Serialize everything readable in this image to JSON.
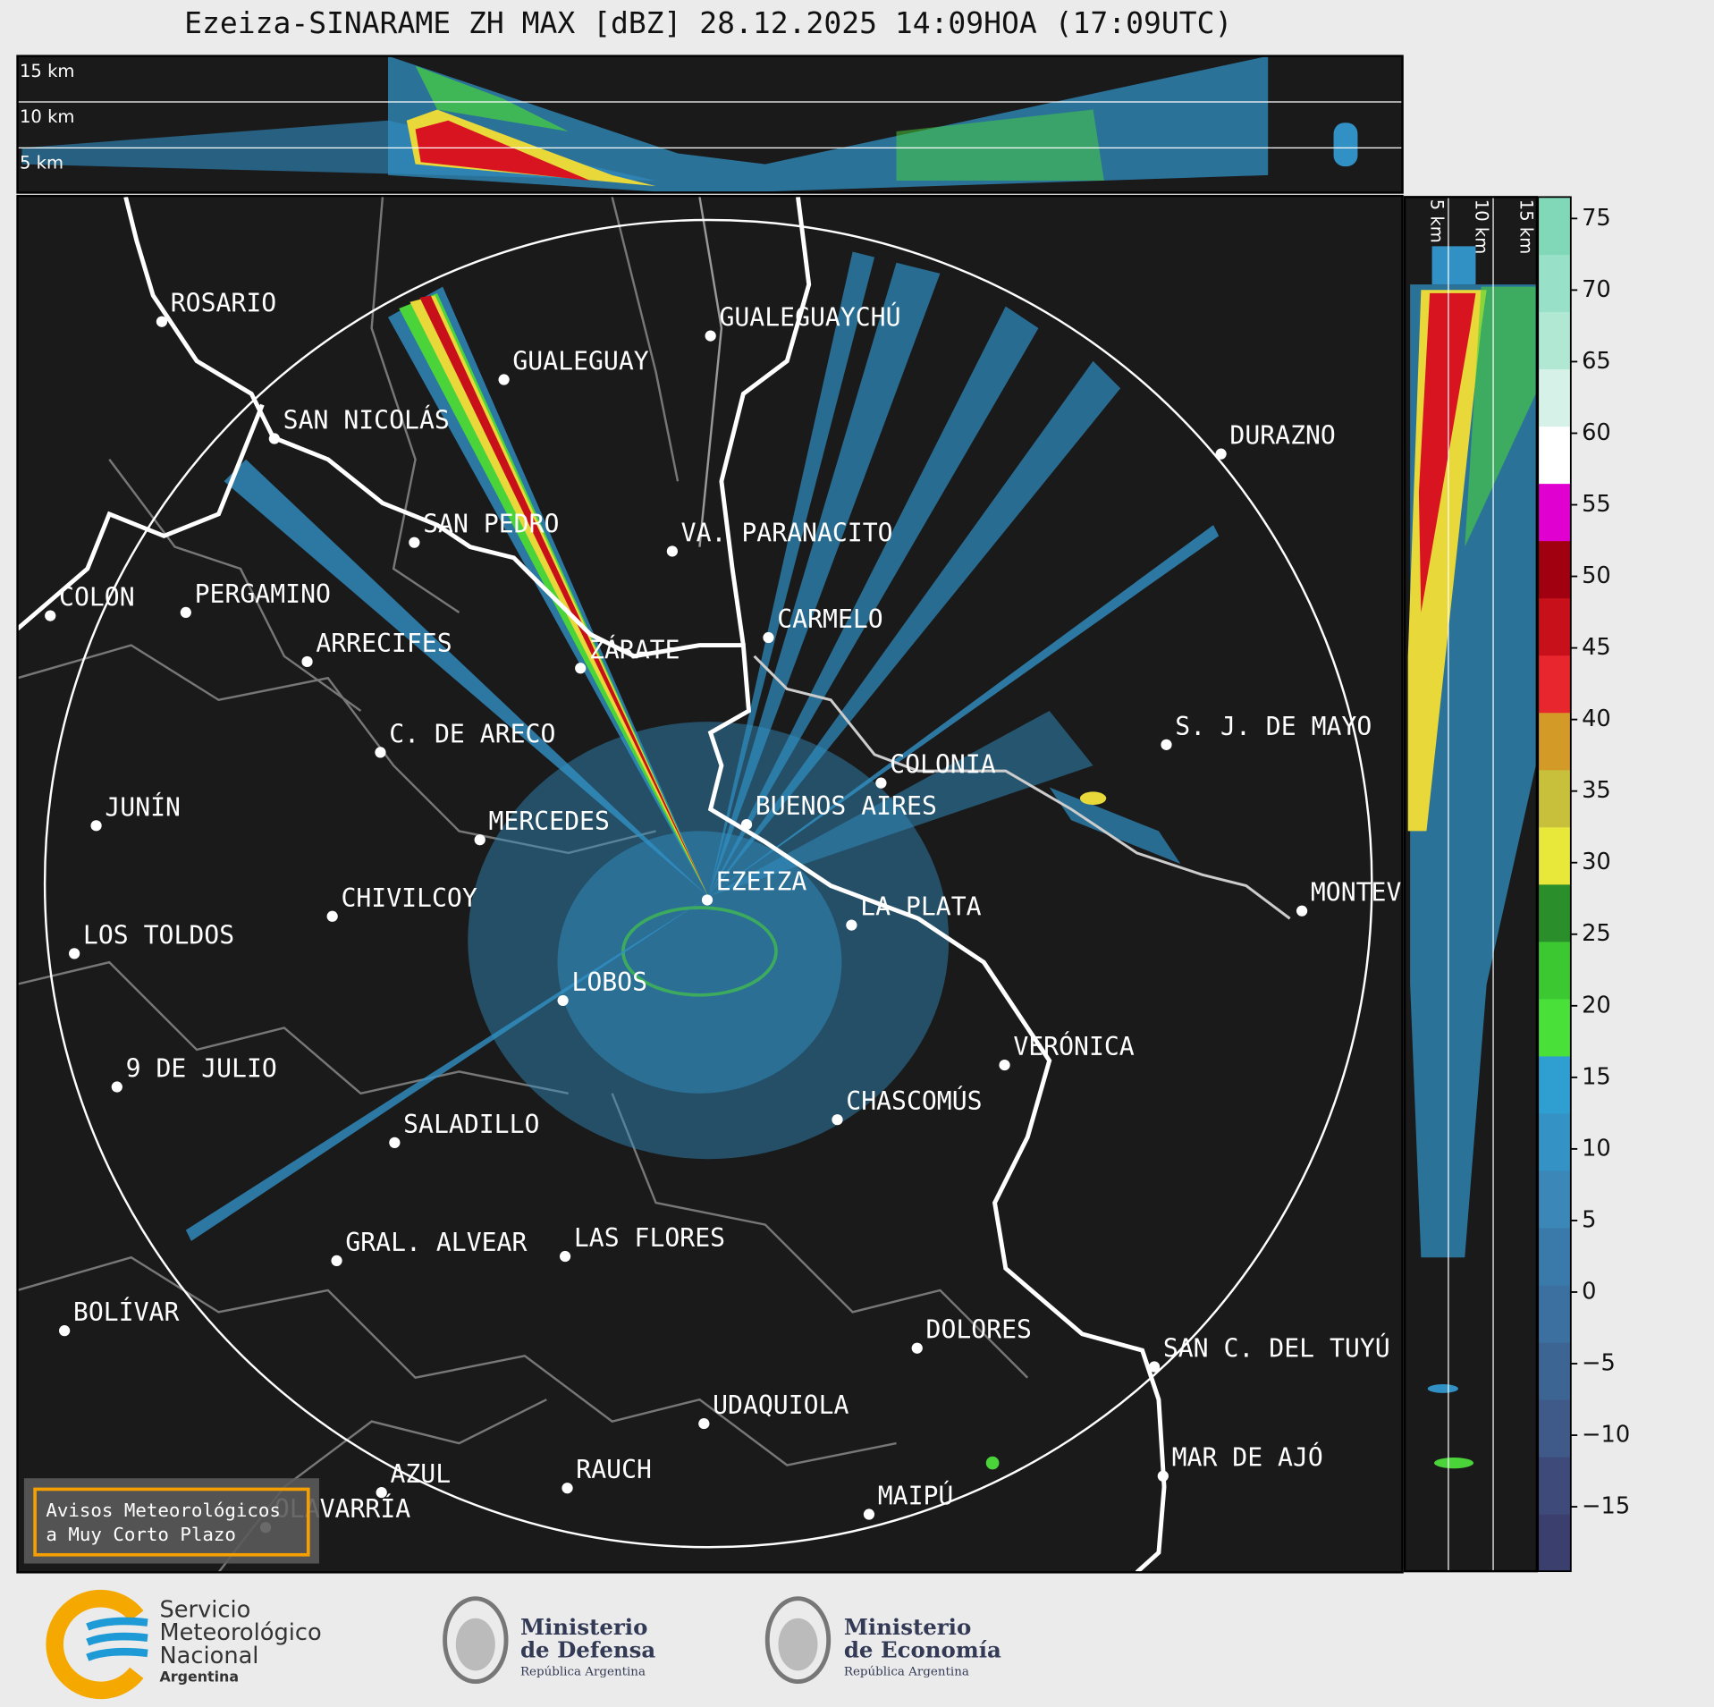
{
  "title": "Ezeiza-SINARAME ZH MAX [dBZ] 28.12.2025 14:09HOA (17:09UTC)",
  "top_panel": {
    "height_labels": [
      "15 km",
      "10 km",
      "5 km"
    ]
  },
  "side_panel": {
    "height_labels": [
      "5 km",
      "10 km",
      "15 km"
    ]
  },
  "cities": [
    "ROSARIO",
    "GUALEGUAYCHÚ",
    "GUALEGUAY",
    "SAN NICOLÁS",
    "DURAZNO",
    "SAN PEDRO",
    "VA. PARANACITO",
    "COLON",
    "PERGAMINO",
    "CARMELO",
    "ARRECIFES",
    "ZÁRATE",
    "S. J. DE MAYO",
    "C. DE ARECO",
    "COLONIA",
    "BUENOS AIRES",
    "JUNÍN",
    "MERCEDES",
    "MONTEVIDEO",
    "EZEIZA",
    "LA PLATA",
    "CHIVILCOY",
    "LOS TOLDOS",
    "LOBOS",
    "VERÓNICA",
    "9 DE JULIO",
    "CHASCOMÚS",
    "SALADILLO",
    "GRAL. ALVEAR",
    "LAS FLORES",
    "BOLÍVAR",
    "DOLORES",
    "SAN C. DEL TUYÚ",
    "UDAQUIOLA",
    "MAR DE AJÓ",
    "AZUL",
    "RAUCH",
    "OLAVARRÍA",
    "MAIPÚ"
  ],
  "colorbar": {
    "lim": [
      -19.5,
      76.5
    ],
    "ticks": [
      75,
      70,
      65,
      60,
      55,
      50,
      45,
      40,
      35,
      30,
      25,
      20,
      15,
      10,
      5,
      0,
      {
        "value": -5,
        "label": "−5"
      },
      {
        "value": -10,
        "label": "−10"
      },
      {
        "value": -15,
        "label": "−15"
      }
    ],
    "colors": [
      "#3b3f6e",
      "#3e4a7a",
      "#3f5a88",
      "#3d6594",
      "#3b70a0",
      "#3a7aab",
      "#3a87b8",
      "#3592c4",
      "#2f9fd2",
      "#4ae03a",
      "#3cc830",
      "#2a8e2a",
      "#e8e83a",
      "#c8c03a",
      "#d49a28",
      "#e8262e",
      "#c8101a",
      "#a00010",
      "#e000d0",
      "#ffffff",
      "#d6f2e8",
      "#b0e8d4",
      "#98e0c8",
      "#80d8b8"
    ]
  },
  "warning_box": {
    "lines": [
      "Avisos Meteorológicos",
      "a Muy Corto Plazo"
    ]
  },
  "logos": [
    {
      "lines": [
        "Servicio",
        "Meteorológico",
        "Nacional"
      ],
      "sub": "Argentina"
    },
    {
      "lines": [
        "Ministerio",
        "de Defensa"
      ],
      "sub": "República Argentina"
    },
    {
      "lines": [
        "Ministerio",
        "de Economía"
      ],
      "sub": "República Argentina"
    }
  ]
}
